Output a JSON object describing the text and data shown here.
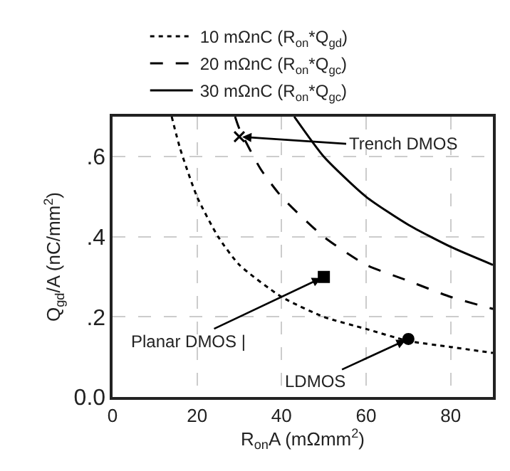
{
  "chart_data": {
    "type": "line",
    "xlabel": "R$_{on}$A (mΩmm$^{2}$)",
    "ylabel": "Q$_{gd}$/A (nC/mm$^{2}$)",
    "xlim": [
      0,
      90
    ],
    "xticks": [
      0,
      20,
      40,
      60,
      80
    ],
    "ylim": [
      0,
      0.7
    ],
    "yticks": [
      {
        "value": 0,
        "label": "0.0"
      },
      {
        "value": 0.2,
        "label": ".2"
      },
      {
        "value": 0.4,
        "label": ".4"
      },
      {
        "value": 0.6,
        "label": ".6"
      }
    ],
    "grid": true,
    "legend": "top",
    "marker": "none",
    "series": [
      {
        "name": "10 mΩnC (R$_{on}$*Q$_{gd}$)",
        "color": "#000000",
        "line_style": "dotted",
        "x": [
          14,
          16,
          20,
          25,
          30,
          40,
          50,
          60,
          70,
          80,
          90
        ],
        "values": [
          0.7,
          0.62,
          0.5,
          0.4,
          0.33,
          0.25,
          0.2,
          0.17,
          0.14,
          0.125,
          0.11
        ]
      },
      {
        "name": "20 mΩnC (R$_{on}$*Q$_{gc}$)",
        "color": "#000000",
        "line_style": "dashed",
        "x": [
          29,
          30,
          35,
          40,
          50,
          60,
          70,
          80,
          90
        ],
        "values": [
          0.7,
          0.67,
          0.57,
          0.5,
          0.4,
          0.33,
          0.29,
          0.25,
          0.22
        ]
      },
      {
        "name": "30 mΩnC (R$_{on}$*Q$_{gc}$)",
        "color": "#000000",
        "line_style": "solid",
        "x": [
          43,
          50,
          60,
          70,
          80,
          90
        ],
        "values": [
          0.7,
          0.6,
          0.5,
          0.43,
          0.375,
          0.33
        ]
      },
      {
        "type": "scatter",
        "marker": "cross",
        "color": "#000000",
        "x": [
          30
        ],
        "values": [
          0.65
        ]
      },
      {
        "type": "scatter",
        "marker": "square",
        "color": "#000000",
        "x": [
          50
        ],
        "values": [
          0.3
        ]
      },
      {
        "type": "scatter",
        "marker": "circle",
        "color": "#000000",
        "x": [
          70
        ],
        "values": [
          0.145
        ]
      }
    ],
    "annotations": [
      {
        "text": "Trench DMOS",
        "x": 30,
        "y": 0.65
      },
      {
        "text": "Planar DMOS |",
        "x": 50,
        "y": 0.3
      },
      {
        "text": "LDMOS",
        "x": 70,
        "y": 0.145
      }
    ]
  }
}
